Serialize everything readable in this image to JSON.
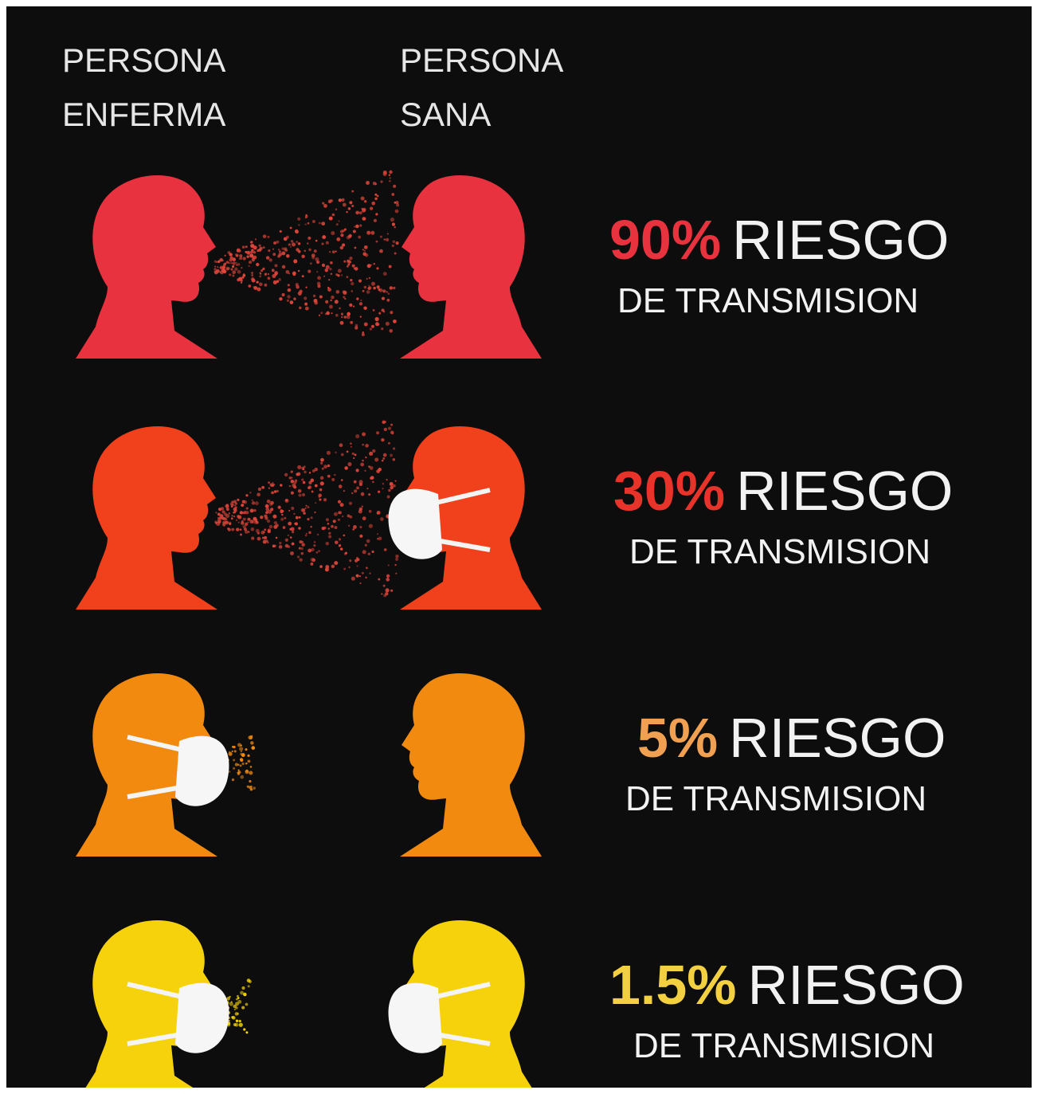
{
  "header": {
    "sick": [
      "PERSONA",
      "ENFERMA"
    ],
    "healthy": [
      "PERSONA",
      "SANA"
    ]
  },
  "rows": [
    {
      "percent": "90%",
      "risk": "RIESGO",
      "transmission": "DE TRANSMISION"
    },
    {
      "percent": "30%",
      "risk": "RIESGO",
      "transmission": "DE TRANSMISION"
    },
    {
      "percent": "5%",
      "risk": "RIESGO",
      "transmission": "DE TRANSMISION"
    },
    {
      "percent": "1.5%",
      "risk": "RIESGO",
      "transmission": "DE TRANSMISION"
    }
  ]
}
